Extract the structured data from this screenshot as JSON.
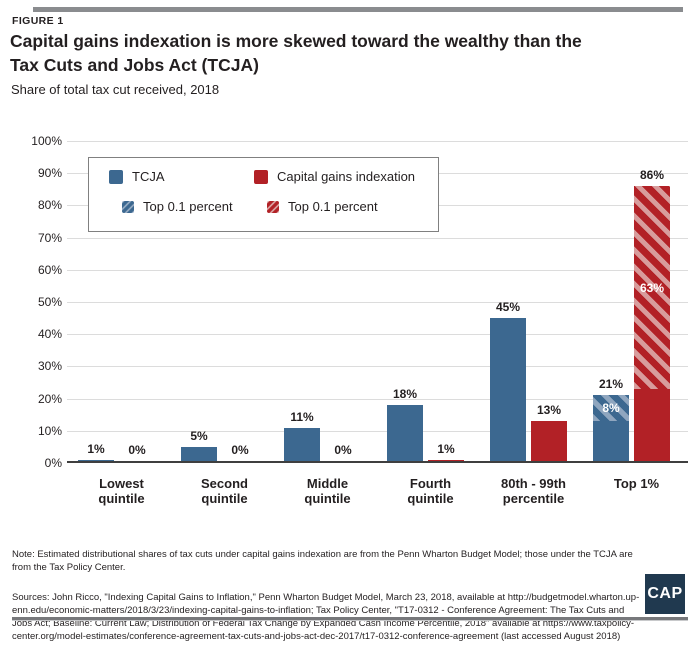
{
  "header": {
    "kicker": "FIGURE 1",
    "title_line1": "Capital gains indexation is more skewed toward the wealthy than the",
    "title_line2": "Tax Cuts and Jobs Act (TCJA)",
    "subtitle": "Share of total tax cut received, 2018"
  },
  "legend": {
    "items": [
      {
        "label": "TCJA",
        "swatch": "solid-blue"
      },
      {
        "label": "Capital gains indexation",
        "swatch": "solid-red"
      },
      {
        "label": "Top 0.1 percent",
        "swatch": "hatch-blue"
      },
      {
        "label": "Top 0.1 percent",
        "swatch": "hatch-red"
      }
    ]
  },
  "chart_data": {
    "type": "bar",
    "title": "Capital gains indexation is more skewed toward the wealthy than the Tax Cuts and Jobs Act (TCJA)",
    "subtitle": "Share of total tax cut received, 2018",
    "categories": [
      "Lowest\nquintile",
      "Second\nquintile",
      "Middle\nquintile",
      "Fourth\nquintile",
      "80th - 99th\npercentile",
      "Top 1%"
    ],
    "series": [
      {
        "name": "TCJA",
        "color": "#3c6890",
        "hatch_light_color": "#8fa6bf",
        "values": [
          1,
          5,
          11,
          18,
          45,
          21
        ],
        "labels": [
          "1%",
          "5%",
          "11%",
          "18%",
          "45%",
          "21%"
        ],
        "hatch_name": "Top 0.1 percent",
        "hatch_values": [
          null,
          null,
          null,
          null,
          null,
          8
        ],
        "hatch_labels": [
          null,
          null,
          null,
          null,
          null,
          "8%"
        ]
      },
      {
        "name": "Capital gains indexation",
        "color": "#b22126",
        "hatch_light_color": "#d89c9c",
        "values": [
          0,
          0,
          0,
          1,
          13,
          86
        ],
        "labels": [
          "0%",
          "0%",
          "0%",
          "1%",
          "13%",
          "86%"
        ],
        "hatch_name": "Top 0.1 percent",
        "hatch_values": [
          null,
          null,
          null,
          null,
          null,
          63
        ],
        "hatch_labels": [
          null,
          null,
          null,
          null,
          null,
          "63%"
        ]
      }
    ],
    "ylim": [
      0,
      100
    ],
    "ytick_step": 10,
    "ytick_labels": [
      "0%",
      "10%",
      "20%",
      "30%",
      "40%",
      "50%",
      "60%",
      "70%",
      "80%",
      "90%",
      "100%"
    ],
    "grid": true,
    "legend_position": "top-left"
  },
  "footer": {
    "note": "Note: Estimated distributional shares of tax cuts under capital gains indexation are from the Penn Wharton Budget Model; those under the TCJA are\nfrom the Tax Policy Center.",
    "sources": "Sources: John Ricco, \"Indexing Capital Gains to Inflation,\" Penn Wharton Budget Model, March 23, 2018, available at http://budgetmodel.wharton.up-\nenn.edu/economic-matters/2018/3/23/indexing-capital-gains-to-inflation; Tax Policy Center, \"T17-0312 - Conference Agreement: The Tax Cuts and\nJobs Act; Baseline: Current Law; Distribution of Federal Tax Change by Expanded Cash Income Percentile, 2018\" available at https://www.taxpolicy-\ncenter.org/model-estimates/conference-agreement-tax-cuts-and-jobs-act-dec-2017/t17-0312-conference-agreement (last accessed August 2018)",
    "logo_text": "CAP"
  },
  "colors": {
    "tcja_blue": "#3c6890",
    "indexation_red": "#b22126",
    "hatch_light_blue": "#8fa6bf",
    "hatch_light_red": "#d89c9c",
    "gridline": "#dcdcdc",
    "axis_line": "#3f3f3f",
    "top_bar_gray": "#8a8c8f",
    "logo_navy": "#20394f",
    "text": "#231f20"
  }
}
